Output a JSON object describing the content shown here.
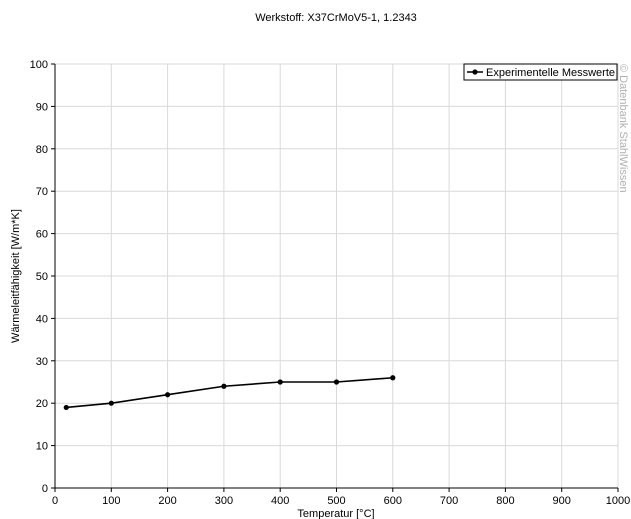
{
  "chart_data": {
    "type": "line",
    "title": "Werkstoff: X37CrMoV5-1, 1.2343",
    "xlabel": "Temperatur [°C]",
    "ylabel": "Wärmeleitfähigkeit [W/m*K]",
    "xlim": [
      0,
      1000
    ],
    "ylim": [
      0,
      100
    ],
    "x_ticks": [
      0,
      100,
      200,
      300,
      400,
      500,
      600,
      700,
      800,
      900,
      1000
    ],
    "y_ticks": [
      0,
      10,
      20,
      30,
      40,
      50,
      60,
      70,
      80,
      90,
      100
    ],
    "grid": true,
    "legend_position": "top-right",
    "series": [
      {
        "name": "Experimentelle Messwerte",
        "color": "#000000",
        "x": [
          20,
          100,
          200,
          300,
          400,
          500,
          600
        ],
        "y": [
          19,
          20,
          22,
          24,
          25,
          25,
          26
        ]
      }
    ],
    "watermark": "© Datenbank StahlWissen"
  }
}
